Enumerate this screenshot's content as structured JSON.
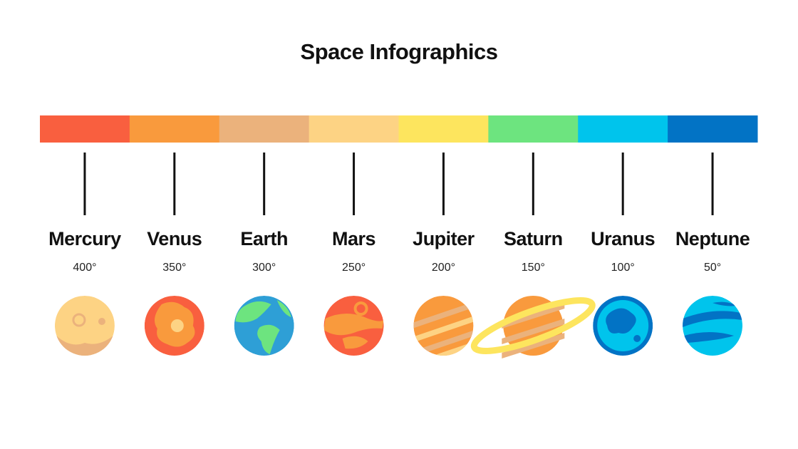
{
  "title": "Space Infographics",
  "planets": [
    {
      "name": "Mercury",
      "temperature": "400°"
    },
    {
      "name": "Venus",
      "temperature": "350°"
    },
    {
      "name": "Earth",
      "temperature": "300°"
    },
    {
      "name": "Mars",
      "temperature": "250°"
    },
    {
      "name": "Jupiter",
      "temperature": "200°"
    },
    {
      "name": "Saturn",
      "temperature": "150°"
    },
    {
      "name": "Uranus",
      "temperature": "100°"
    },
    {
      "name": "Neptune",
      "temperature": "50°"
    }
  ]
}
